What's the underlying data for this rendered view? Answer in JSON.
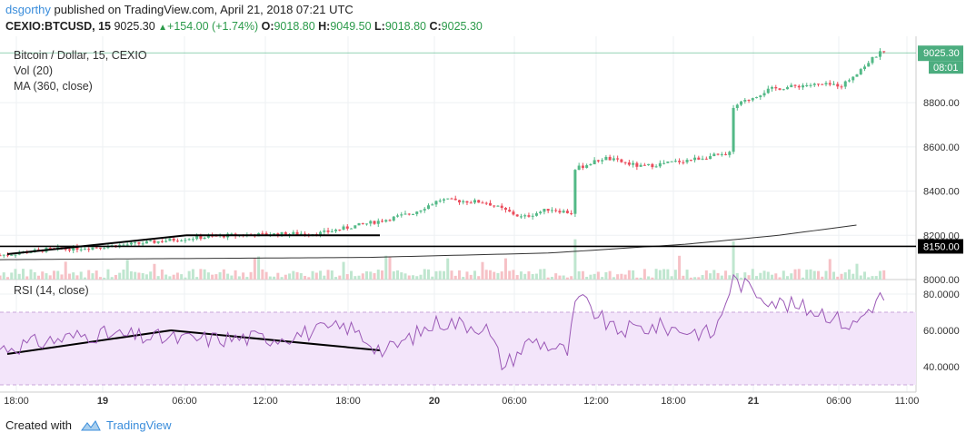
{
  "header": {
    "author": "dsgorthy",
    "published": " published on TradingView.com, April 21, 2018 07:21 UTC",
    "symbol": "CEXIO:BTCUSD, 15",
    "last": " 9025.30 ",
    "change": "+154.00 (+1.74%)",
    "o_label": " O:",
    "o": "9018.80",
    "h_label": " H:",
    "h": "9049.50",
    "l_label": " L:",
    "l": "9018.80",
    "c_label": " C:",
    "c": "9025.30"
  },
  "legend": [
    "Bitcoin / Dollar, 15, CEXIO",
    "Vol (20)",
    "MA (360, close)"
  ],
  "rsi_legend": "RSI (14, close)",
  "footer": {
    "created": "Created with",
    "brand": "TradingView"
  },
  "colors": {
    "up": "#53b987",
    "down": "#eb4d5c",
    "rsi": "#9b59b6",
    "rsi_band": "#f3e5fa",
    "ma": "#333333"
  },
  "chart_data": [
    {
      "type": "candlestick",
      "title": "Bitcoin / Dollar, 15, CEXIO",
      "x_ticks": [
        "18:00",
        "19",
        "06:00",
        "12:00",
        "18:00",
        "20",
        "06:00",
        "12:00",
        "18:00",
        "21",
        "06:00",
        "11:00"
      ],
      "y_ticks": [
        "8000.00",
        "8200.00",
        "8400.00",
        "8600.00",
        "8800.00"
      ],
      "ylim": [
        8000,
        9100
      ],
      "last_price_label": "9025.30",
      "countdown_label": "08:01",
      "horizontal_level_label": "8150.00",
      "horizontal_level": 8150,
      "price_path": [
        {
          "t": 0,
          "p": 8110
        },
        {
          "t": 0.05,
          "p": 8135
        },
        {
          "t": 0.1,
          "p": 8145
        },
        {
          "t": 0.15,
          "p": 8162
        },
        {
          "t": 0.2,
          "p": 8185
        },
        {
          "t": 0.25,
          "p": 8200
        },
        {
          "t": 0.3,
          "p": 8205
        },
        {
          "t": 0.35,
          "p": 8210
        },
        {
          "t": 0.42,
          "p": 8270
        },
        {
          "t": 0.45,
          "p": 8300
        },
        {
          "t": 0.48,
          "p": 8360
        },
        {
          "t": 0.53,
          "p": 8350
        },
        {
          "t": 0.57,
          "p": 8280
        },
        {
          "t": 0.6,
          "p": 8320
        },
        {
          "t": 0.625,
          "p": 8300
        },
        {
          "t": 0.628,
          "p": 8500
        },
        {
          "t": 0.66,
          "p": 8550
        },
        {
          "t": 0.7,
          "p": 8510
        },
        {
          "t": 0.75,
          "p": 8540
        },
        {
          "t": 0.78,
          "p": 8560
        },
        {
          "t": 0.796,
          "p": 8560
        },
        {
          "t": 0.8,
          "p": 8780
        },
        {
          "t": 0.84,
          "p": 8860
        },
        {
          "t": 0.88,
          "p": 8880
        },
        {
          "t": 0.92,
          "p": 8880
        },
        {
          "t": 0.96,
          "p": 9025
        }
      ],
      "ma_path": [
        {
          "t": 0,
          "p": 8090
        },
        {
          "t": 0.4,
          "p": 8100
        },
        {
          "t": 0.6,
          "p": 8120
        },
        {
          "t": 0.75,
          "p": 8160
        },
        {
          "t": 0.85,
          "p": 8200
        },
        {
          "t": 0.96,
          "p": 8260
        }
      ]
    },
    {
      "type": "line",
      "title": "RSI (14, close)",
      "y_ticks": [
        "40.0000",
        "60.0000",
        "80.0000"
      ],
      "ylim": [
        26,
        88
      ],
      "band": [
        30,
        70
      ],
      "rsi_path": [
        {
          "t": 0,
          "p": 50
        },
        {
          "t": 0.1,
          "p": 58
        },
        {
          "t": 0.2,
          "p": 55
        },
        {
          "t": 0.3,
          "p": 56
        },
        {
          "t": 0.38,
          "p": 62
        },
        {
          "t": 0.42,
          "p": 48
        },
        {
          "t": 0.48,
          "p": 65
        },
        {
          "t": 0.53,
          "p": 62
        },
        {
          "t": 0.55,
          "p": 40
        },
        {
          "t": 0.58,
          "p": 55
        },
        {
          "t": 0.62,
          "p": 48
        },
        {
          "t": 0.63,
          "p": 79
        },
        {
          "t": 0.67,
          "p": 60
        },
        {
          "t": 0.72,
          "p": 62
        },
        {
          "t": 0.78,
          "p": 58
        },
        {
          "t": 0.8,
          "p": 88
        },
        {
          "t": 0.85,
          "p": 75
        },
        {
          "t": 0.9,
          "p": 70
        },
        {
          "t": 0.93,
          "p": 62
        },
        {
          "t": 0.96,
          "p": 78
        }
      ]
    }
  ]
}
